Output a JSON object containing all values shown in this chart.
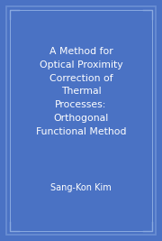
{
  "title_lines": [
    "A Method for",
    "Optical Proximity",
    "Correction of",
    "Thermal",
    "Processes:",
    "Orthogonal",
    "Functional Method"
  ],
  "author": "Sang-Kon Kim",
  "bg_color": "#4a72c4",
  "border_outer_color": "#6b8fd4",
  "border_inner_color": "#8aaae0",
  "text_color": "#ffffff",
  "title_fontsize": 7.8,
  "author_fontsize": 7.0,
  "fig_width": 1.8,
  "fig_height": 2.67,
  "dpi": 100
}
